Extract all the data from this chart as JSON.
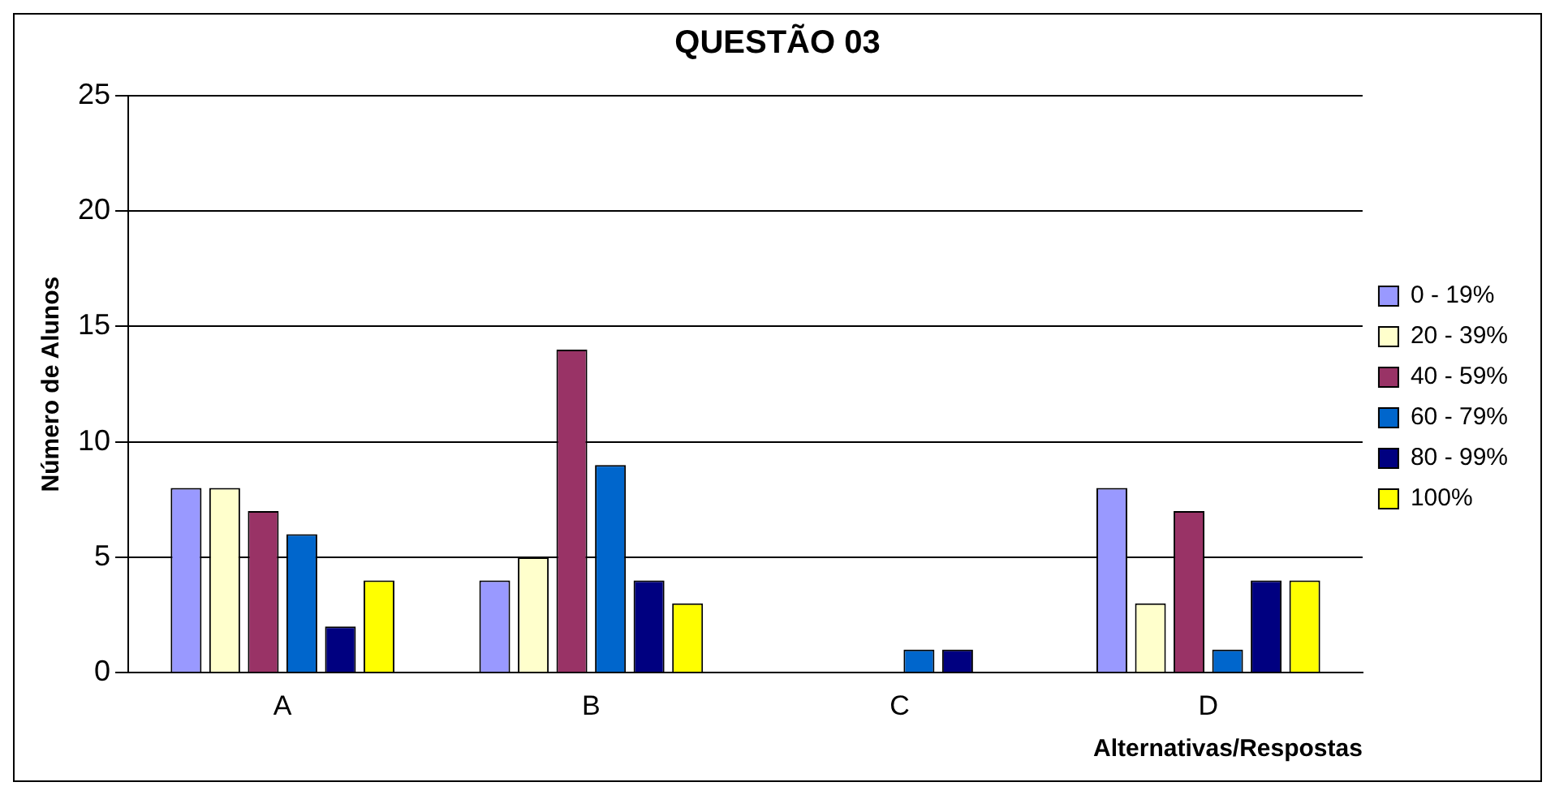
{
  "chart_data": {
    "type": "bar",
    "title": "QUESTÃO 03",
    "xlabel": "Alternativas/Respostas",
    "ylabel": "Número de Alunos",
    "categories": [
      "A",
      "B",
      "C",
      "D"
    ],
    "series": [
      {
        "name": "0 - 19%",
        "color": "#9999ff",
        "values": [
          8,
          4,
          0,
          8
        ]
      },
      {
        "name": "20 - 39%",
        "color": "#ffffcc",
        "values": [
          8,
          5,
          0,
          3
        ]
      },
      {
        "name": "40 - 59%",
        "color": "#993366",
        "values": [
          7,
          14,
          0,
          7
        ]
      },
      {
        "name": "60 - 79%",
        "color": "#0066cc",
        "values": [
          6,
          9,
          1,
          1
        ]
      },
      {
        "name": "80 - 99%",
        "color": "#000080",
        "values": [
          2,
          4,
          1,
          4
        ]
      },
      {
        "name": "100%",
        "color": "#ffff00",
        "values": [
          4,
          3,
          0,
          4
        ]
      }
    ],
    "ylim": [
      0,
      25
    ],
    "yticks": [
      0,
      5,
      10,
      15,
      20,
      25
    ],
    "grid": "y",
    "legend": "right"
  }
}
